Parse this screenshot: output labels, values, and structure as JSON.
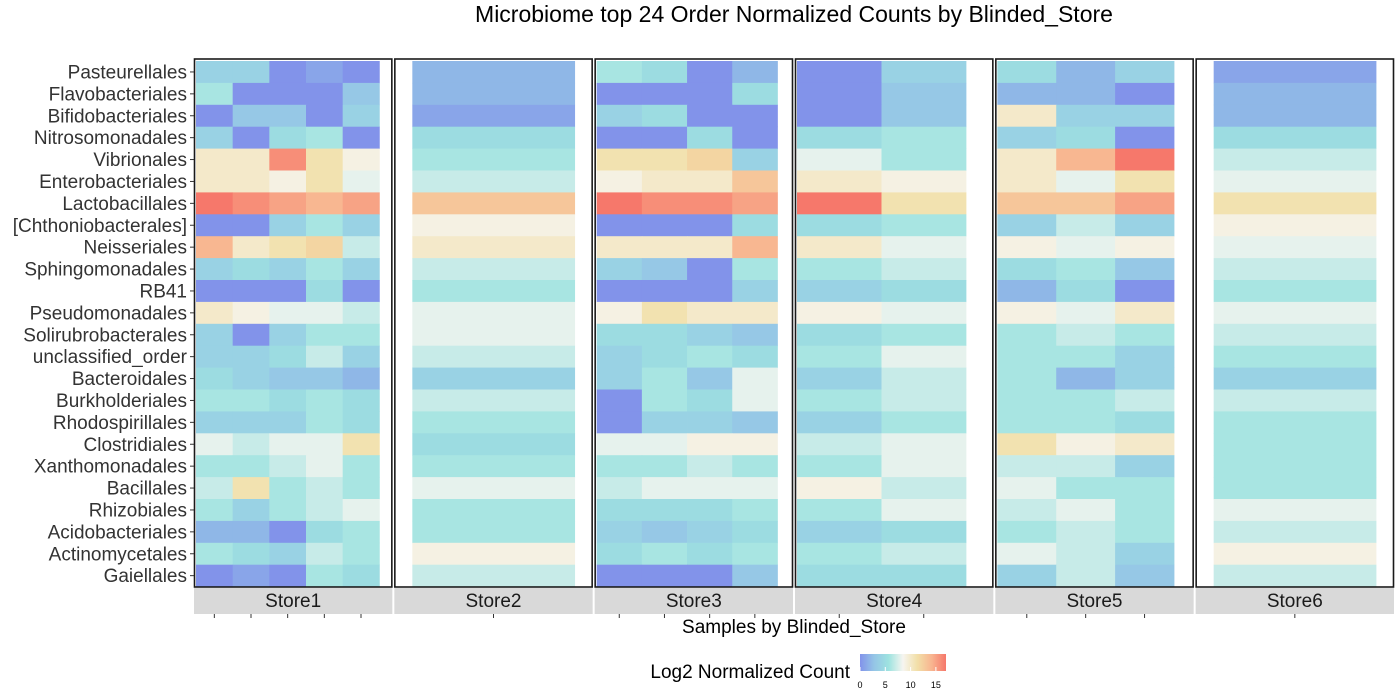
{
  "chart_data": {
    "type": "heatmap",
    "title": "Microbiome top 24 Order Normalized Counts by Blinded_Store",
    "xlabel": "Samples by Blinded_Store",
    "legend": {
      "title": "Log2 Normalized Count",
      "ticks": [
        0,
        5,
        10,
        15
      ],
      "range": [
        0,
        17
      ]
    },
    "colors": [
      "#8293ea",
      "#95c6e6",
      "#9ee3e0",
      "#f6f5f0",
      "#f2dfa8",
      "#f8b590",
      "#f6786b"
    ],
    "rows": [
      "Pasteurellales",
      "Flavobacteriales",
      "Bifidobacteriales",
      "Nitrosomonadales",
      "Vibrionales",
      "Enterobacteriales",
      "Lactobacillales",
      "[Chthoniobacterales]",
      "Neisseriales",
      "Sphingomonadales",
      "RB41",
      "Pseudomonadales",
      "Solirubrobacterales",
      "unclassified_order",
      "Bacteroidales",
      "Burkholderiales",
      "Rhodospirillales",
      "Clostridiales",
      "Xanthomonadales",
      "Bacillales",
      "Rhizobiales",
      "Acidobacteriales",
      "Actinomycetales",
      "Gaiellales"
    ],
    "stores": [
      {
        "name": "Store1",
        "samples": 5,
        "values": [
          [
            4,
            4,
            0,
            1,
            0
          ],
          [
            6,
            0,
            0,
            0,
            3
          ],
          [
            0,
            3,
            3,
            0,
            4
          ],
          [
            4,
            0,
            5,
            6,
            0
          ],
          [
            10,
            10,
            16,
            11,
            9
          ],
          [
            10,
            10,
            9,
            11,
            8
          ],
          [
            17,
            16,
            15,
            14,
            15
          ],
          [
            0,
            0,
            4,
            6,
            4
          ],
          [
            14,
            10,
            11,
            12,
            7
          ],
          [
            4,
            5,
            4,
            6,
            4
          ],
          [
            0,
            0,
            0,
            5,
            0
          ],
          [
            10,
            9,
            8,
            8,
            7
          ],
          [
            4,
            0,
            4,
            6,
            6
          ],
          [
            4,
            4,
            5,
            7,
            4
          ],
          [
            5,
            4,
            3,
            3,
            2
          ],
          [
            6,
            6,
            5,
            6,
            5
          ],
          [
            4,
            4,
            4,
            6,
            5
          ],
          [
            8,
            7,
            8,
            8,
            11
          ],
          [
            6,
            6,
            7,
            8,
            6
          ],
          [
            7,
            11,
            6,
            7,
            6
          ],
          [
            6,
            4,
            6,
            7,
            8
          ],
          [
            2,
            2,
            0,
            5,
            6
          ],
          [
            6,
            5,
            4,
            7,
            6
          ],
          [
            0,
            1,
            0,
            6,
            5
          ]
        ]
      },
      {
        "name": "Store2",
        "samples": 1,
        "values": [
          [
            2
          ],
          [
            2
          ],
          [
            1
          ],
          [
            5
          ],
          [
            6
          ],
          [
            7
          ],
          [
            13
          ],
          [
            9
          ],
          [
            10
          ],
          [
            7
          ],
          [
            6
          ],
          [
            8
          ],
          [
            8
          ],
          [
            7
          ],
          [
            4
          ],
          [
            7
          ],
          [
            6
          ],
          [
            5
          ],
          [
            6
          ],
          [
            8
          ],
          [
            6
          ],
          [
            6
          ],
          [
            9
          ],
          [
            7
          ]
        ]
      },
      {
        "name": "Store3",
        "samples": 4,
        "values": [
          [
            6,
            5,
            0,
            2
          ],
          [
            0,
            0,
            0,
            5
          ],
          [
            4,
            5,
            0,
            0
          ],
          [
            0,
            0,
            5,
            0
          ],
          [
            11,
            11,
            12,
            4
          ],
          [
            9,
            10,
            10,
            13
          ],
          [
            17,
            16,
            16,
            15
          ],
          [
            0,
            0,
            0,
            5
          ],
          [
            10,
            10,
            10,
            14
          ],
          [
            4,
            3,
            0,
            6
          ],
          [
            0,
            0,
            0,
            4
          ],
          [
            9,
            11,
            10,
            10
          ],
          [
            5,
            5,
            4,
            3
          ],
          [
            4,
            5,
            6,
            5
          ],
          [
            4,
            6,
            3,
            8
          ],
          [
            0,
            6,
            5,
            8
          ],
          [
            0,
            4,
            4,
            3
          ],
          [
            8,
            8,
            9,
            9
          ],
          [
            6,
            6,
            7,
            6
          ],
          [
            7,
            8,
            8,
            8
          ],
          [
            5,
            5,
            5,
            6
          ],
          [
            4,
            3,
            4,
            5
          ],
          [
            5,
            6,
            5,
            6
          ],
          [
            0,
            0,
            0,
            3
          ]
        ]
      },
      {
        "name": "Store4",
        "samples": 2,
        "values": [
          [
            0,
            4
          ],
          [
            0,
            3
          ],
          [
            0,
            3
          ],
          [
            5,
            6
          ],
          [
            8,
            6
          ],
          [
            10,
            9
          ],
          [
            17,
            11
          ],
          [
            5,
            6
          ],
          [
            10,
            8
          ],
          [
            6,
            7
          ],
          [
            4,
            5
          ],
          [
            9,
            8
          ],
          [
            5,
            6
          ],
          [
            6,
            8
          ],
          [
            4,
            7
          ],
          [
            6,
            7
          ],
          [
            4,
            6
          ],
          [
            7,
            8
          ],
          [
            6,
            8
          ],
          [
            9,
            7
          ],
          [
            6,
            8
          ],
          [
            4,
            5
          ],
          [
            6,
            7
          ],
          [
            5,
            5
          ]
        ]
      },
      {
        "name": "Store5",
        "samples": 3,
        "values": [
          [
            5,
            2,
            4
          ],
          [
            2,
            2,
            0
          ],
          [
            10,
            4,
            4
          ],
          [
            4,
            5,
            0
          ],
          [
            10,
            14,
            17
          ],
          [
            10,
            8,
            11
          ],
          [
            13,
            13,
            15
          ],
          [
            4,
            7,
            4
          ],
          [
            9,
            8,
            9
          ],
          [
            5,
            6,
            3
          ],
          [
            2,
            5,
            0
          ],
          [
            9,
            8,
            10
          ],
          [
            6,
            7,
            6
          ],
          [
            6,
            6,
            4
          ],
          [
            6,
            2,
            4
          ],
          [
            6,
            6,
            7
          ],
          [
            6,
            6,
            5
          ],
          [
            11,
            9,
            10
          ],
          [
            7,
            7,
            4
          ],
          [
            8,
            6,
            6
          ],
          [
            7,
            8,
            6
          ],
          [
            6,
            7,
            6
          ],
          [
            8,
            7,
            4
          ],
          [
            4,
            7,
            3
          ]
        ]
      },
      {
        "name": "Store6",
        "samples": 1,
        "values": [
          [
            1
          ],
          [
            2
          ],
          [
            2
          ],
          [
            5
          ],
          [
            7
          ],
          [
            8
          ],
          [
            11
          ],
          [
            9
          ],
          [
            8
          ],
          [
            7
          ],
          [
            6
          ],
          [
            8
          ],
          [
            7
          ],
          [
            6
          ],
          [
            4
          ],
          [
            7
          ],
          [
            6
          ],
          [
            6
          ],
          [
            6
          ],
          [
            6
          ],
          [
            8
          ],
          [
            7
          ],
          [
            9
          ],
          [
            7
          ]
        ]
      }
    ]
  }
}
